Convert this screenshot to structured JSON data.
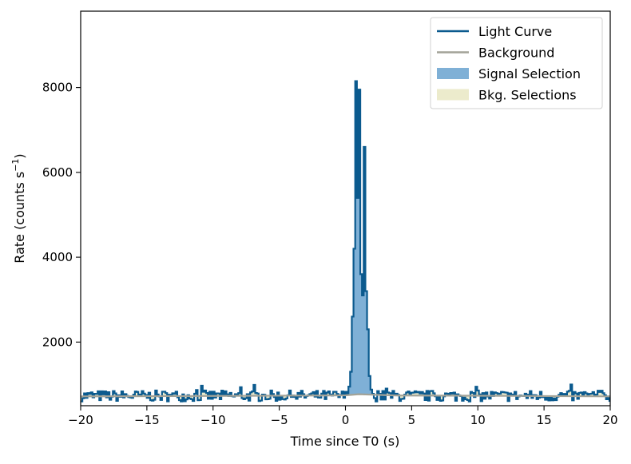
{
  "chart_data": {
    "type": "line",
    "xlabel": "Time since T0 (s)",
    "ylabel_main": "Rate (counts s",
    "ylabel_sup": "−1",
    "ylabel_close": ")",
    "xlim": [
      -20,
      20
    ],
    "ylim": [
      500,
      9800
    ],
    "x_ticks": [
      -20,
      -15,
      -10,
      -5,
      0,
      5,
      10,
      15,
      20
    ],
    "x_tick_labels": [
      "−20",
      "−15",
      "−10",
      "−5",
      "0",
      "5",
      "10",
      "15",
      "20"
    ],
    "y_ticks": [
      2000,
      4000,
      6000,
      8000
    ],
    "y_tick_labels": [
      "2000",
      "4000",
      "6000",
      "8000"
    ],
    "grid": false,
    "legend_position": "top-right",
    "legend": [
      {
        "label": "Light Curve",
        "kind": "line",
        "color": "#0b5a8e"
      },
      {
        "label": "Background",
        "kind": "line",
        "color": "#a3a398"
      },
      {
        "label": "Signal Selection",
        "kind": "patch",
        "color": "#7fb0d6"
      },
      {
        "label": "Bkg. Selections",
        "kind": "patch",
        "color": "#ecebcc"
      }
    ],
    "colors": {
      "light_curve": "#0b5a8e",
      "background": "#a3a398",
      "signal_fill": "#7fb0d6",
      "bkg_fill": "#ecebcc"
    },
    "signal_selection": [
      0.2,
      2.0
    ],
    "bkg_selections": [
      [
        -20,
        -0.5
      ],
      [
        2.5,
        20
      ]
    ],
    "background": {
      "x": [
        -20,
        -10,
        -2,
        0,
        1.0,
        2.0,
        4,
        10,
        20
      ],
      "y": [
        720,
        730,
        740,
        745,
        770,
        760,
        740,
        735,
        720
      ]
    },
    "light_curve": {
      "bin_width": 0.128,
      "peaks": [
        {
          "x": [
            0.0,
            0.13,
            0.26,
            0.38,
            0.51,
            0.64,
            0.77,
            0.9,
            1.02,
            1.15,
            1.28,
            1.41,
            1.54,
            1.66,
            1.79,
            1.92
          ],
          "y": [
            760,
            950,
            1300,
            2600,
            4200,
            8150,
            5400,
            7950,
            3600,
            3100,
            6600,
            3200,
            2300,
            1200,
            880,
            780
          ]
        }
      ]
    }
  }
}
